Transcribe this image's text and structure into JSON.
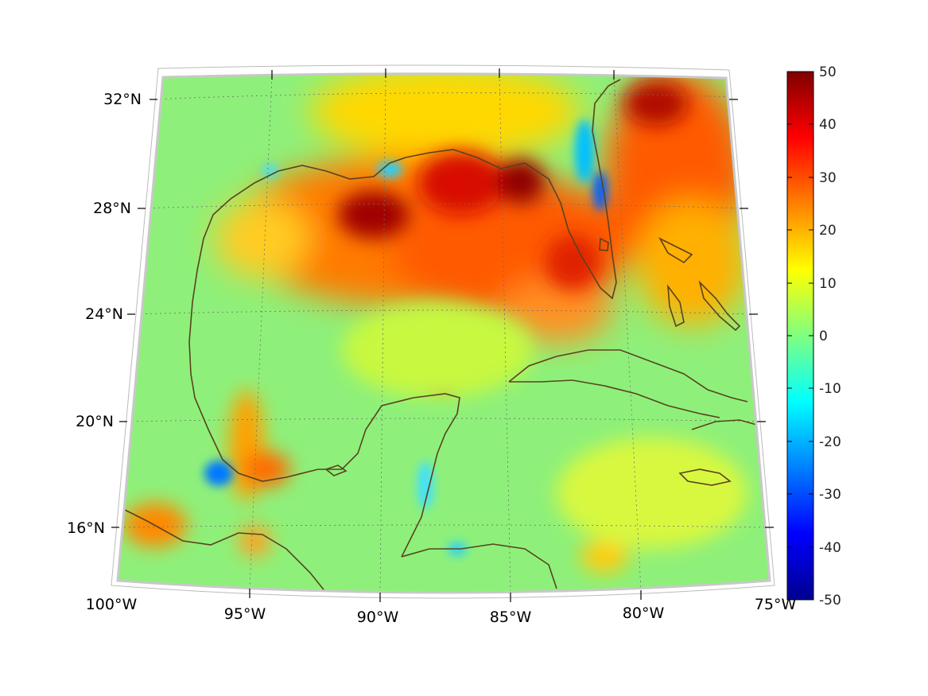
{
  "map": {
    "projection": "conic",
    "lon_range": [
      -100,
      -75
    ],
    "lat_range": [
      14,
      33
    ],
    "lat_ticks": [
      "32°N",
      "28°N",
      "24°N",
      "20°N",
      "16°N"
    ],
    "lon_ticks": [
      "100°W",
      "95°W",
      "90°W",
      "85°W",
      "80°W",
      "75°W"
    ],
    "grid": true,
    "colormap": "jet",
    "coastline_color": "#5a4220",
    "frame_color": "#c8c8c8"
  },
  "colorbar": {
    "range": [
      -50,
      50
    ],
    "ticks": [
      "50",
      "40",
      "30",
      "20",
      "10",
      "0",
      "-10",
      "-20",
      "-30",
      "-40",
      "-50"
    ],
    "placement": "right"
  }
}
